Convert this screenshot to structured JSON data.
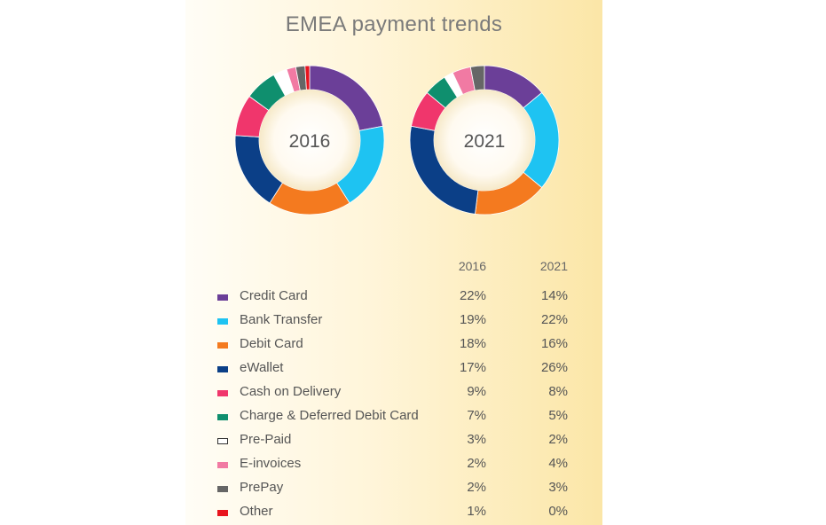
{
  "chart_data": {
    "type": "pie",
    "title": "EMEA payment trends",
    "columns": [
      "2016",
      "2021"
    ],
    "categories": [
      "Credit Card",
      "Bank Transfer",
      "Debit Card",
      "eWallet",
      "Cash on Delivery",
      "Charge & Deferred Debit Card",
      "Pre-Paid",
      "E-invoices",
      "PrePay",
      "Other"
    ],
    "colors": [
      "#6b3f98",
      "#1ec3f2",
      "#f47a1f",
      "#0b3f87",
      "#f0366c",
      "#0f8f6e",
      "#ffffff",
      "#f17aa3",
      "#666666",
      "#e8141e"
    ],
    "series": [
      {
        "name": "2016",
        "values": [
          22,
          19,
          18,
          17,
          9,
          7,
          3,
          2,
          2,
          1
        ],
        "labels": [
          "22%",
          "19%",
          "18%",
          "17%",
          "9%",
          "7%",
          "3%",
          "2%",
          "2%",
          "1%"
        ]
      },
      {
        "name": "2021",
        "values": [
          14,
          22,
          16,
          26,
          8,
          5,
          2,
          4,
          3,
          0
        ],
        "labels": [
          "14%",
          "22%",
          "16%",
          "26%",
          "8%",
          "5%",
          "2%",
          "4%",
          "3%",
          "0%"
        ]
      }
    ]
  }
}
